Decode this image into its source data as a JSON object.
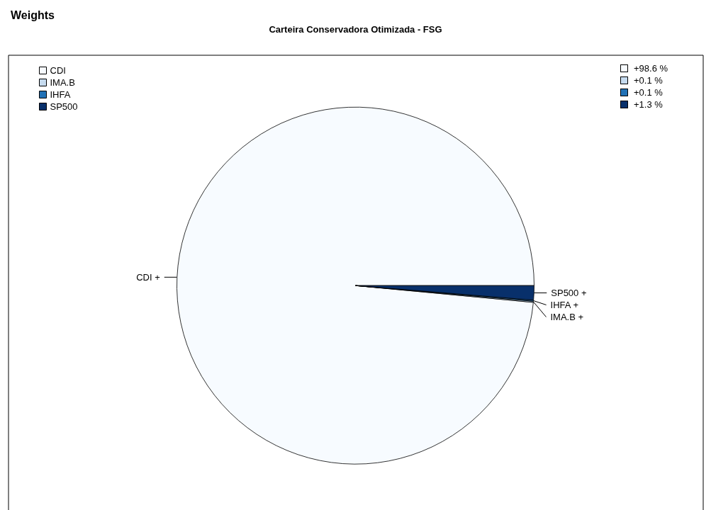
{
  "chart_data": {
    "type": "pie",
    "title": "Weights",
    "subtitle": "Carteira Conservadora Otimizada - FSG",
    "categories": [
      "CDI",
      "IMA.B",
      "IHFA",
      "SP500"
    ],
    "values": [
      98.6,
      0.1,
      0.1,
      1.3
    ],
    "colors": [
      "#f7fbff",
      "#c6dbef",
      "#2171b5",
      "#08306b"
    ],
    "value_labels": [
      "+98.6 %",
      "+0.1 %",
      "+0.1 %",
      "+1.3 %"
    ],
    "annotations": [
      "CDI +",
      "IMA.B +",
      "IHFA +",
      "SP500 +"
    ],
    "legend": "top left"
  }
}
